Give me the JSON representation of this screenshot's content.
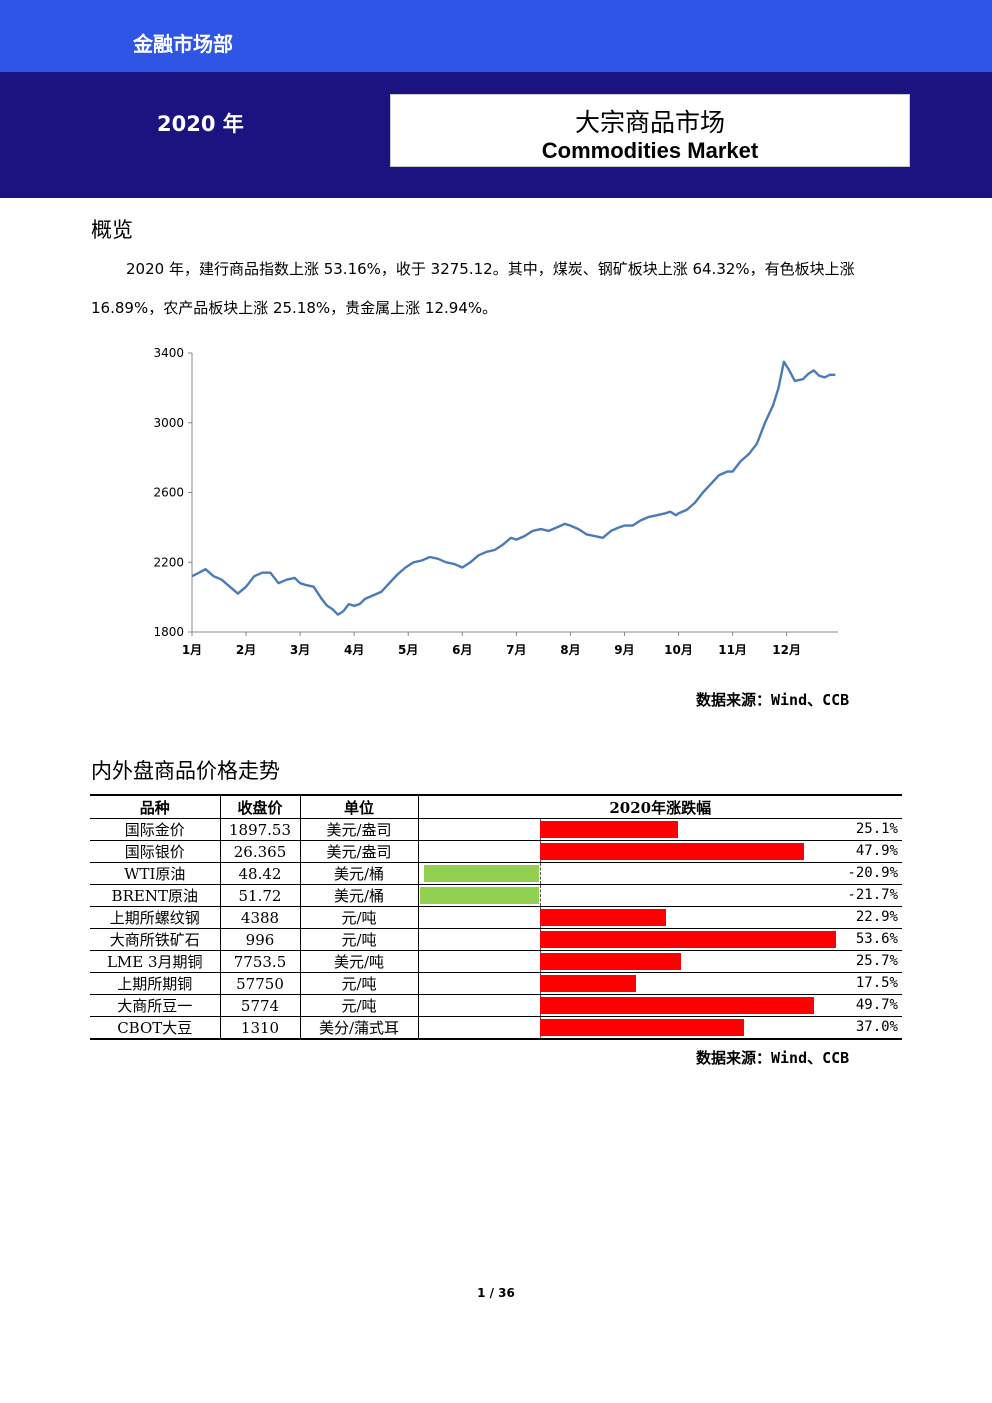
{
  "header": {
    "dept": "金融市场部",
    "year": "2020 年",
    "title_cn": "大宗商品市场",
    "title_en": "Commodities Market",
    "band_top_color": "#2f55e6",
    "band_navy_color": "#1a1380"
  },
  "overview": {
    "heading": "概览",
    "text": "2020 年，建行商品指数上涨 53.16%，收于 3275.12。其中，煤炭、钢矿板块上涨 64.32%，有色板块上涨 16.89%，农产品板块上涨 25.18%，贵金属上涨 12.94%。"
  },
  "chart_data": {
    "type": "line",
    "line_color": "#4a7bb7",
    "ylim": [
      1800,
      3400
    ],
    "yticks": [
      "1800",
      "2200",
      "2600",
      "3000",
      "3400"
    ],
    "xticks": [
      "1月",
      "2月",
      "3月",
      "4月",
      "5月",
      "6月",
      "7月",
      "8月",
      "9月",
      "10月",
      "11月",
      "12月"
    ],
    "series": [
      {
        "x": [
          1.0,
          1.1,
          1.25,
          1.4,
          1.55,
          1.7,
          1.85,
          2.0,
          2.15,
          2.3,
          2.45,
          2.6,
          2.75,
          2.9,
          3.0,
          3.1,
          3.25,
          3.4,
          3.5,
          3.6,
          3.7,
          3.8,
          3.9,
          4.0,
          4.1,
          4.2,
          4.35,
          4.5,
          4.65,
          4.8,
          4.95,
          5.1,
          5.25,
          5.4,
          5.55,
          5.7,
          5.85,
          6.0,
          6.15,
          6.3,
          6.45,
          6.6,
          6.75,
          6.9,
          7.0,
          7.15,
          7.3,
          7.45,
          7.6,
          7.75,
          7.9,
          8.0,
          8.15,
          8.3,
          8.45,
          8.6,
          8.75,
          8.9,
          9.0,
          9.15,
          9.3,
          9.45,
          9.6,
          9.75,
          9.85,
          9.95,
          10.0,
          10.15,
          10.3,
          10.45,
          10.6,
          10.75,
          10.9,
          11.0,
          11.15,
          11.3,
          11.45,
          11.6,
          11.75,
          11.85,
          11.95,
          12.05,
          12.15,
          12.3,
          12.4,
          12.5,
          12.6,
          12.7,
          12.8,
          12.9
        ],
        "values": [
          2120,
          2135,
          2160,
          2120,
          2100,
          2060,
          2020,
          2060,
          2120,
          2140,
          2140,
          2080,
          2100,
          2110,
          2080,
          2070,
          2060,
          1990,
          1950,
          1930,
          1900,
          1920,
          1960,
          1950,
          1960,
          1990,
          2010,
          2030,
          2080,
          2130,
          2170,
          2200,
          2210,
          2230,
          2220,
          2200,
          2190,
          2170,
          2200,
          2240,
          2260,
          2270,
          2300,
          2340,
          2330,
          2350,
          2380,
          2390,
          2380,
          2400,
          2420,
          2410,
          2390,
          2360,
          2350,
          2340,
          2380,
          2400,
          2410,
          2410,
          2440,
          2460,
          2470,
          2480,
          2490,
          2470,
          2480,
          2500,
          2540,
          2600,
          2650,
          2700,
          2720,
          2720,
          2780,
          2820,
          2880,
          3000,
          3100,
          3200,
          3350,
          3300,
          3240,
          3250,
          3280,
          3300,
          3270,
          3260,
          3275,
          3275
        ]
      }
    ]
  },
  "source_label": "数据来源：Wind、CCB",
  "table": {
    "heading": "内外盘商品价格走势",
    "headers": [
      "品种",
      "收盘价",
      "单位",
      "2020年涨跌幅"
    ],
    "rows": [
      {
        "name": "国际金价",
        "close": "1897.53",
        "unit": "美元/盎司",
        "change": 25.1,
        "change_label": "25.1%"
      },
      {
        "name": "国际银价",
        "close": "26.365",
        "unit": "美元/盎司",
        "change": 47.9,
        "change_label": "47.9%"
      },
      {
        "name": "WTI原油",
        "close": "48.42",
        "unit": "美元/桶",
        "change": -20.9,
        "change_label": "-20.9%"
      },
      {
        "name": "BRENT原油",
        "close": "51.72",
        "unit": "美元/桶",
        "change": -21.7,
        "change_label": "-21.7%"
      },
      {
        "name": "上期所螺纹钢",
        "close": "4388",
        "unit": "元/吨",
        "change": 22.9,
        "change_label": "22.9%"
      },
      {
        "name": "大商所铁矿石",
        "close": "996",
        "unit": "元/吨",
        "change": 53.6,
        "change_label": "53.6%"
      },
      {
        "name": "LME 3月期铜",
        "close": "7753.5",
        "unit": "美元/吨",
        "change": 25.7,
        "change_label": "25.7%"
      },
      {
        "name": "上期所期铜",
        "close": "57750",
        "unit": "元/吨",
        "change": 17.5,
        "change_label": "17.5%"
      },
      {
        "name": "大商所豆一",
        "close": "5774",
        "unit": "元/吨",
        "change": 49.7,
        "change_label": "49.7%"
      },
      {
        "name": "CBOT大豆",
        "close": "1310",
        "unit": "美分/蒲式耳",
        "change": 37.0,
        "change_label": "37.0%"
      }
    ],
    "positive_color": "#ff0000",
    "negative_color": "#92d050"
  },
  "page_number": "1 / 36"
}
